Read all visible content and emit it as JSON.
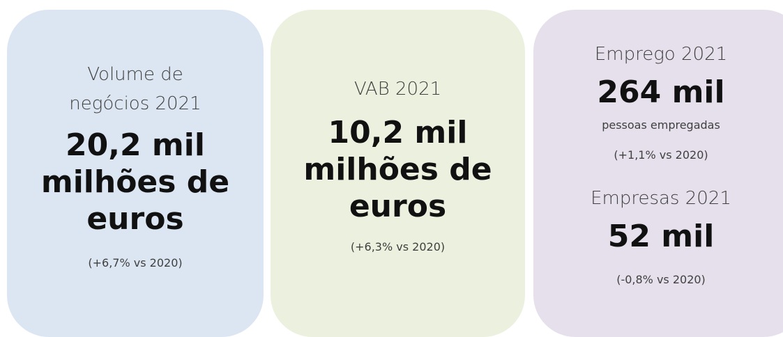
{
  "cards": [
    {
      "items": [
        {
          "label": "Volume de negócios 2021",
          "value": "20,2 mil milhões de euros",
          "change": "(+6,7% vs 2020)"
        }
      ]
    },
    {
      "items": [
        {
          "label": "VAB 2021",
          "value": "10,2 mil milhões de euros",
          "change": "(+6,3% vs 2020)"
        }
      ]
    },
    {
      "items": [
        {
          "label": "Emprego 2021",
          "value": "264 mil",
          "note": "pessoas empregadas",
          "change": "(+1,1% vs 2020)"
        },
        {
          "label": "Empresas 2021",
          "value": "52 mil",
          "change": "(-0,8% vs 2020)"
        }
      ]
    }
  ]
}
